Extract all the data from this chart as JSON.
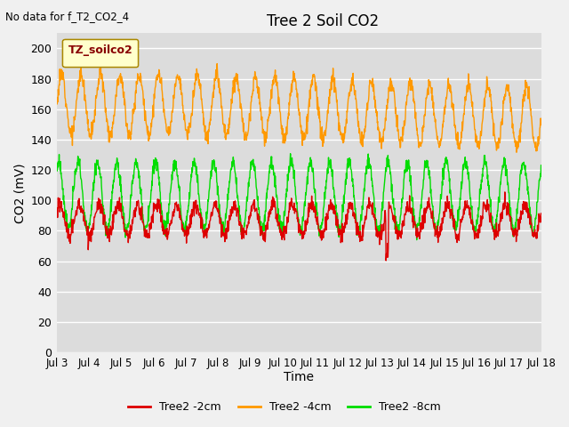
{
  "title": "Tree 2 Soil CO2",
  "top_left_text": "No data for f_T2_CO2_4",
  "ylabel": "CO2 (mV)",
  "xlabel": "Time",
  "ylim": [
    0,
    210
  ],
  "yticks": [
    0,
    20,
    40,
    60,
    80,
    100,
    120,
    140,
    160,
    180,
    200
  ],
  "xtick_labels": [
    "Jul 3",
    "Jul 4",
    "Jul 5",
    "Jul 6",
    "Jul 7",
    "Jul 8",
    "Jul 9",
    "Jul 10",
    "Jul 11",
    "Jul 12",
    "Jul 13",
    "Jul 14",
    "Jul 15",
    "Jul 16",
    "Jul 17",
    "Jul 18"
  ],
  "legend_label": "TZ_soilco2",
  "series_labels": [
    "Tree2 -2cm",
    "Tree2 -4cm",
    "Tree2 -8cm"
  ],
  "series_colors": [
    "#dd0000",
    "#ff9900",
    "#00dd00"
  ],
  "fig_bg_color": "#f0f0f0",
  "plot_bg_color": "#dcdcdc",
  "grid_color": "#ffffff",
  "n_points": 1500,
  "days": 15,
  "period": 0.6
}
